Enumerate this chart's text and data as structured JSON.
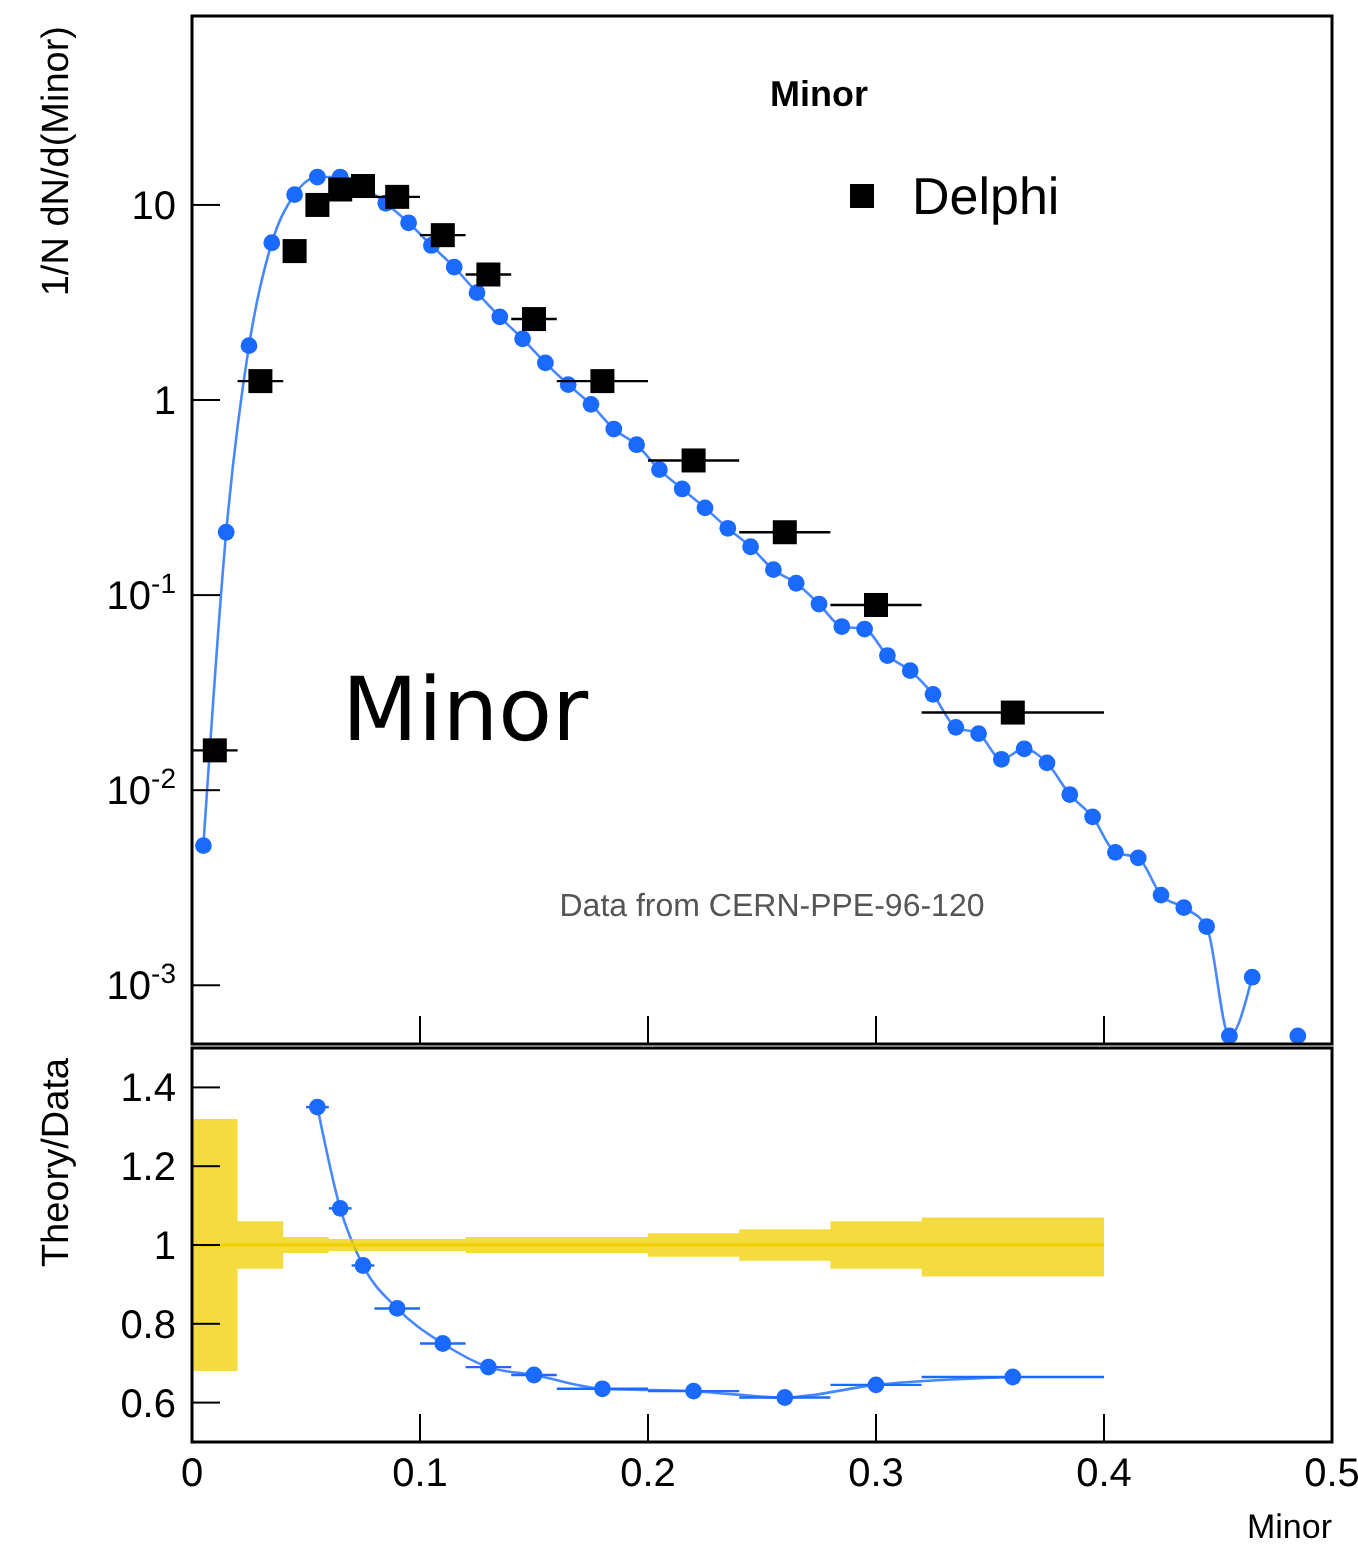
{
  "chart_data": [
    {
      "type": "scatter",
      "title": "Minor",
      "ylabel": "1/N dN/d(Minor)",
      "xlim": [
        0,
        0.5
      ],
      "xticks": [
        0,
        0.1,
        0.2,
        0.3,
        0.4,
        0.5
      ],
      "ylim": [
        0.0005,
        93
      ],
      "yticks": [
        {
          "value": 0.001,
          "label": "10$^{-3}$"
        },
        {
          "value": 0.01,
          "label": "10$^{-2}$"
        },
        {
          "value": 0.1,
          "label": "10$^{-1}$"
        },
        1,
        10
      ],
      "log": "y",
      "tick_labels": "y",
      "legend": "top right",
      "annotations": [
        "Minor",
        "Data from CERN-PPE-96-120"
      ],
      "series": [
        {
          "name": "Delphi",
          "marker": "square",
          "color": "#000000",
          "x": [
            0.01,
            0.03,
            0.045,
            0.055,
            0.065,
            0.075,
            0.09,
            0.11,
            0.13,
            0.15,
            0.18,
            0.22,
            0.26,
            0.3,
            0.36
          ],
          "values": [
            0.016,
            1.25,
            5.8,
            10,
            12,
            12.5,
            11,
            7,
            4.4,
            2.6,
            1.25,
            0.49,
            0.21,
            0.089,
            0.025
          ],
          "xerrors": [
            0.01,
            0.01,
            0.005,
            0.005,
            0.005,
            0.005,
            0.01,
            0.01,
            0.01,
            0.01,
            0.02,
            0.02,
            0.02,
            0.02,
            0.04
          ]
        },
        {
          "type": "line",
          "marker": "circle",
          "color": "#1a6aff",
          "x": [
            0.005,
            0.015,
            0.025,
            0.035,
            0.045,
            0.055,
            0.065,
            0.075,
            0.085,
            0.095,
            0.105,
            0.115,
            0.125,
            0.135,
            0.145,
            0.155,
            0.165,
            0.175,
            0.185,
            0.195,
            0.205,
            0.215,
            0.225,
            0.235,
            0.245,
            0.255,
            0.265,
            0.275,
            0.285,
            0.295,
            0.305,
            0.315,
            0.325,
            0.335,
            0.345,
            0.355,
            0.365,
            0.375,
            0.385,
            0.395,
            0.405,
            0.415,
            0.425,
            0.435,
            0.445,
            0.455,
            0.465,
            0.475,
            0.485
          ],
          "values": [
            0.0052,
            0.21,
            1.9,
            6.4,
            11.3,
            13.9,
            13.9,
            12.4,
            10.2,
            8.1,
            6.2,
            4.8,
            3.55,
            2.67,
            2.06,
            1.55,
            1.2,
            0.95,
            0.71,
            0.59,
            0.44,
            0.35,
            0.28,
            0.22,
            0.177,
            0.135,
            0.115,
            0.09,
            0.069,
            0.067,
            0.049,
            0.041,
            0.031,
            0.021,
            0.0195,
            0.0144,
            0.0163,
            0.0138,
            0.0095,
            0.0073,
            0.0048,
            0.0045,
            0.0029,
            0.0025,
            0.002,
            0.00055,
            0.0011,
            null,
            0.00055
          ]
        }
      ]
    },
    {
      "type": "line",
      "ylabel": "Theory/Data",
      "xlabel": "Minor",
      "xlim": [
        0,
        0.5
      ],
      "xticks": [
        0,
        0.1,
        0.2,
        0.3,
        0.4,
        0.5
      ],
      "ylim": [
        0.5,
        1.5
      ],
      "yticks": [
        0.6,
        0.8,
        1,
        1.2,
        1.4
      ],
      "series": [
        {
          "type": "step",
          "color": "#f0d000",
          "x": [
            0,
            0.02,
            0.04,
            0.06,
            0.12,
            0.2,
            0.24,
            0.28,
            0.32,
            0.4
          ],
          "values": [
            1,
            1,
            1,
            1,
            1,
            1,
            1,
            1,
            1,
            1
          ],
          "lower": [
            0.68,
            0.94,
            0.98,
            0.985,
            0.98,
            0.97,
            0.96,
            0.94,
            0.92,
            0.92
          ],
          "upper": [
            1.32,
            1.06,
            1.02,
            1.015,
            1.02,
            1.03,
            1.04,
            1.06,
            1.07,
            1.07
          ]
        },
        {
          "marker": "circle",
          "color": "#1a6aff",
          "x": [
            0.055,
            0.065,
            0.075,
            0.09,
            0.11,
            0.13,
            0.15,
            0.18,
            0.22,
            0.26,
            0.3,
            0.36
          ],
          "values": [
            1.35,
            1.093,
            0.948,
            0.839,
            0.75,
            0.69,
            0.67,
            0.635,
            0.629,
            0.613,
            0.645,
            0.665
          ],
          "xerrors": [
            0.005,
            0.005,
            0.005,
            0.01,
            0.01,
            0.01,
            0.01,
            0.02,
            0.02,
            0.02,
            0.02,
            0.04
          ]
        }
      ]
    }
  ]
}
